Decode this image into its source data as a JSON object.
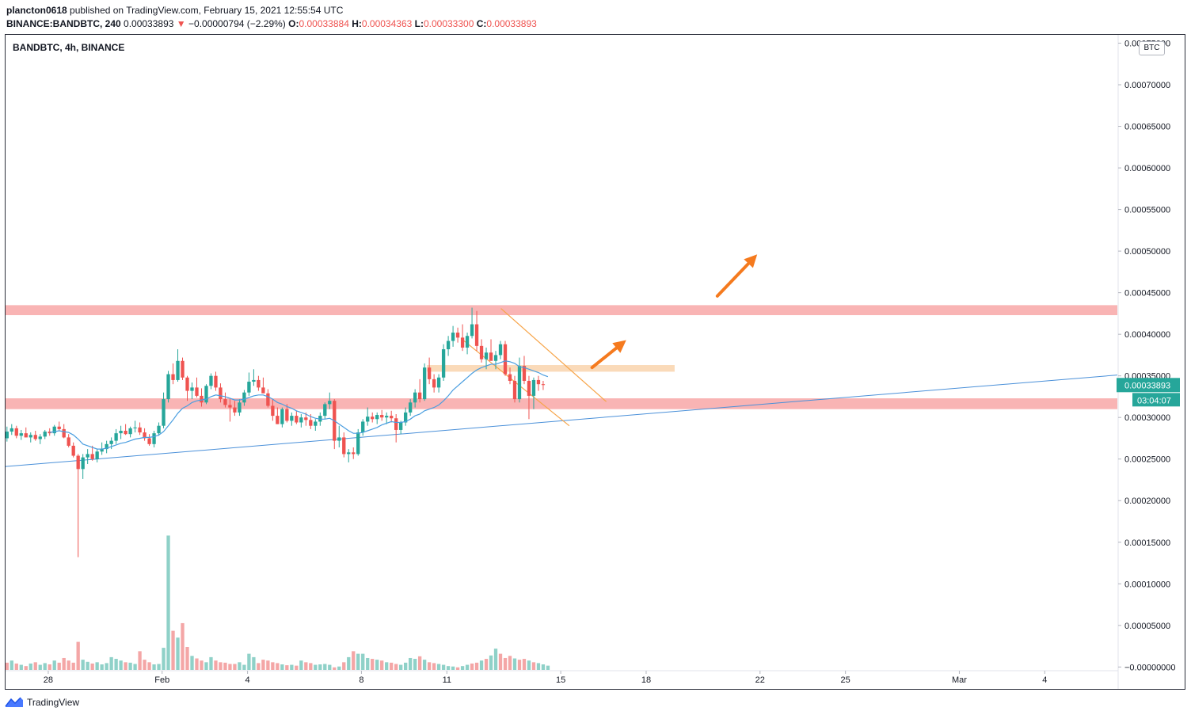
{
  "header": {
    "publisher": "plancton0618",
    "published_text": "published on TradingView.com, February 15, 2021 12:55:54 UTC",
    "symbol": "BINANCE:BANDBTC, 240",
    "last": "0.00033893",
    "change": "−0.00000794 (−2.29%)",
    "o_label": "O:",
    "o_value": "0.00033884",
    "h_label": "H:",
    "h_value": "0.00034363",
    "l_label": "L:",
    "l_value": "0.00033300",
    "c_label": "C:",
    "c_value": "0.00033893"
  },
  "chart_data": {
    "type": "candlestick",
    "title": "BANDBTC, 4h, BINANCE",
    "currency": "BTC",
    "y_ticks": [
      "0.00075000",
      "0.00070000",
      "0.00065000",
      "0.00060000",
      "0.00055000",
      "0.00050000",
      "0.00045000",
      "0.00040000",
      "0.00035000",
      "0.00030000",
      "0.00025000",
      "0.00020000",
      "0.00015000",
      "0.00010000",
      "0.00005000",
      "−0.00000000"
    ],
    "y_tick_values": [
      0.00075,
      0.0007,
      0.00065,
      0.0006,
      0.00055,
      0.0005,
      0.00045,
      0.0004,
      0.00035,
      0.0003,
      0.00025,
      0.0002,
      0.00015,
      0.0001,
      5e-05,
      0
    ],
    "ylim": [
      -3.5e-06,
      0.00076
    ],
    "x_ticks": [
      "28",
      "Feb",
      "4",
      "8",
      "11",
      "15",
      "18",
      "22",
      "25",
      "Mar",
      "4"
    ],
    "x_tick_days": [
      28,
      32,
      35,
      39,
      42,
      46,
      49,
      53,
      56,
      60,
      63
    ],
    "xlim_days": [
      26.5,
      65.55
    ],
    "current_price_label": "0.00033893",
    "countdown_label": "03:04:07",
    "candles_start_day": 26.55,
    "candles_interval_days": 0.16667,
    "candles": [
      [
        0.000275,
        0.000289,
        0.000271,
        0.000283
      ],
      [
        0.000283,
        0.000292,
        0.000279,
        0.000287
      ],
      [
        0.000287,
        0.00029,
        0.000275,
        0.000278
      ],
      [
        0.000278,
        0.000285,
        0.000273,
        0.000281
      ],
      [
        0.000281,
        0.000288,
        0.000276,
        0.000276
      ],
      [
        0.000276,
        0.000282,
        0.00027,
        0.000279
      ],
      [
        0.000279,
        0.000284,
        0.000272,
        0.000274
      ],
      [
        0.000274,
        0.00028,
        0.000268,
        0.000277
      ],
      [
        0.000277,
        0.000285,
        0.000274,
        0.000283
      ],
      [
        0.000283,
        0.000287,
        0.000278,
        0.000281
      ],
      [
        0.000281,
        0.000291,
        0.000278,
        0.000289
      ],
      [
        0.000289,
        0.000295,
        0.000284,
        0.000286
      ],
      [
        0.000286,
        0.000292,
        0.000275,
        0.000276
      ],
      [
        0.000276,
        0.00028,
        0.000264,
        0.000266
      ],
      [
        0.000266,
        0.00027,
        0.000252,
        0.000254
      ],
      [
        0.000254,
        0.000256,
        0.000132,
        0.000238
      ],
      [
        0.000238,
        0.000256,
        0.000226,
        0.000252
      ],
      [
        0.000252,
        0.000262,
        0.000244,
        0.000256
      ],
      [
        0.000256,
        0.000266,
        0.000248,
        0.00025
      ],
      [
        0.00025,
        0.000262,
        0.000246,
        0.000259
      ],
      [
        0.000259,
        0.00027,
        0.000255,
        0.000262
      ],
      [
        0.000262,
        0.000272,
        0.000257,
        0.000268
      ],
      [
        0.000268,
        0.000276,
        0.000262,
        0.000272
      ],
      [
        0.000272,
        0.000286,
        0.000268,
        0.000281
      ],
      [
        0.000281,
        0.00029,
        0.000274,
        0.000284
      ],
      [
        0.000284,
        0.000292,
        0.000279,
        0.00028
      ],
      [
        0.00028,
        0.000289,
        0.000276,
        0.000287
      ],
      [
        0.000287,
        0.000296,
        0.000282,
        0.000288
      ],
      [
        0.000288,
        0.000294,
        0.000279,
        0.000282
      ],
      [
        0.000282,
        0.000287,
        0.000272,
        0.000275
      ],
      [
        0.000275,
        0.00028,
        0.000266,
        0.000268
      ],
      [
        0.000268,
        0.000284,
        0.000264,
        0.000281
      ],
      [
        0.000281,
        0.000294,
        0.000278,
        0.00029
      ],
      [
        0.00029,
        0.00033,
        0.000287,
        0.000322
      ],
      [
        0.000322,
        0.000356,
        0.000318,
        0.000352
      ],
      [
        0.000352,
        0.000365,
        0.00034,
        0.000345
      ],
      [
        0.000345,
        0.000382,
        0.000343,
        0.000368
      ],
      [
        0.000368,
        0.000372,
        0.000345,
        0.000348
      ],
      [
        0.000348,
        0.00035,
        0.00032,
        0.000332
      ],
      [
        0.000332,
        0.000342,
        0.000322,
        0.000336
      ],
      [
        0.000336,
        0.000348,
        0.000324,
        0.000326
      ],
      [
        0.000326,
        0.000335,
        0.000313,
        0.000318
      ],
      [
        0.000318,
        0.00034,
        0.000316,
        0.000338
      ],
      [
        0.000338,
        0.000353,
        0.000334,
        0.00035
      ],
      [
        0.00035,
        0.000355,
        0.000332,
        0.000336
      ],
      [
        0.000336,
        0.000341,
        0.000318,
        0.000322
      ],
      [
        0.000322,
        0.00033,
        0.000312,
        0.000315
      ],
      [
        0.000315,
        0.000322,
        0.000295,
        0.000312
      ],
      [
        0.000312,
        0.00032,
        0.000302,
        0.000306
      ],
      [
        0.000306,
        0.000322,
        0.000302,
        0.000318
      ],
      [
        0.000318,
        0.000333,
        0.000314,
        0.00033
      ],
      [
        0.00033,
        0.000354,
        0.000326,
        0.000343
      ],
      [
        0.000343,
        0.000358,
        0.000338,
        0.000345
      ],
      [
        0.000345,
        0.00035,
        0.000332,
        0.000336
      ],
      [
        0.000336,
        0.000348,
        0.000331,
        0.000329
      ],
      [
        0.000329,
        0.000334,
        0.000312,
        0.000314
      ],
      [
        0.000314,
        0.000322,
        0.000296,
        0.000302
      ],
      [
        0.000302,
        0.000312,
        0.000292,
        0.000292
      ],
      [
        0.000292,
        0.000312,
        0.000288,
        0.00031
      ],
      [
        0.00031,
        0.000316,
        0.000294,
        0.000296
      ],
      [
        0.000296,
        0.000306,
        0.00029,
        0.000302
      ],
      [
        0.000302,
        0.000308,
        0.000292,
        0.000294
      ],
      [
        0.000294,
        0.000304,
        0.000288,
        0.0003
      ],
      [
        0.0003,
        0.000306,
        0.00029,
        0.000297
      ],
      [
        0.000297,
        0.000304,
        0.000286,
        0.00029
      ],
      [
        0.00029,
        0.000298,
        0.000284,
        0.000295
      ],
      [
        0.000295,
        0.000306,
        0.00029,
        0.000302
      ],
      [
        0.000302,
        0.000318,
        0.000298,
        0.000316
      ],
      [
        0.000316,
        0.00033,
        0.00031,
        0.00032
      ],
      [
        0.00032,
        0.000322,
        0.000262,
        0.000272
      ],
      [
        0.000272,
        0.00029,
        0.000264,
        0.000276
      ],
      [
        0.000276,
        0.000282,
        0.000252,
        0.000256
      ],
      [
        0.000256,
        0.000262,
        0.000246,
        0.000258
      ],
      [
        0.000258,
        0.000264,
        0.00025,
        0.000256
      ],
      [
        0.000256,
        0.000286,
        0.000254,
        0.000282
      ],
      [
        0.000282,
        0.000298,
        0.000278,
        0.000295
      ],
      [
        0.000295,
        0.000312,
        0.00029,
        0.000301
      ],
      [
        0.000301,
        0.000306,
        0.000294,
        0.000298
      ],
      [
        0.000298,
        0.000306,
        0.000292,
        0.000303
      ],
      [
        0.000303,
        0.000309,
        0.000296,
        0.0003
      ],
      [
        0.0003,
        0.000306,
        0.000292,
        0.000302
      ],
      [
        0.000302,
        0.000308,
        0.000294,
        0.000299
      ],
      [
        0.000299,
        0.000304,
        0.00027,
        0.000285
      ],
      [
        0.000285,
        0.000296,
        0.00028,
        0.000294
      ],
      [
        0.000294,
        0.000312,
        0.00029,
        0.000306
      ],
      [
        0.000306,
        0.000322,
        0.000302,
        0.000318
      ],
      [
        0.000318,
        0.000334,
        0.000312,
        0.00033
      ],
      [
        0.00033,
        0.000346,
        0.000318,
        0.000322
      ],
      [
        0.000322,
        0.000365,
        0.00032,
        0.00036
      ],
      [
        0.00036,
        0.000372,
        0.00034,
        0.000346
      ],
      [
        0.000346,
        0.000352,
        0.00033,
        0.000336
      ],
      [
        0.000336,
        0.000352,
        0.00033,
        0.000348
      ],
      [
        0.000348,
        0.000388,
        0.000344,
        0.000382
      ],
      [
        0.000382,
        0.000398,
        0.000374,
        0.000392
      ],
      [
        0.000392,
        0.00041,
        0.000385,
        0.000402
      ],
      [
        0.000402,
        0.000408,
        0.00039,
        0.000396
      ],
      [
        0.000396,
        0.000412,
        0.00038,
        0.000384
      ],
      [
        0.000384,
        0.000402,
        0.000376,
        0.000398
      ],
      [
        0.000398,
        0.000432,
        0.000395,
        0.000412
      ],
      [
        0.000412,
        0.000428,
        0.00038,
        0.000386
      ],
      [
        0.000386,
        0.000394,
        0.000366,
        0.00037
      ],
      [
        0.00037,
        0.000384,
        0.000358,
        0.000378
      ],
      [
        0.000378,
        0.000394,
        0.00037,
        0.000368
      ],
      [
        0.000368,
        0.00038,
        0.000358,
        0.000375
      ],
      [
        0.000375,
        0.000392,
        0.00037,
        0.000388
      ],
      [
        0.000388,
        0.000392,
        0.00035,
        0.000352
      ],
      [
        0.000352,
        0.00036,
        0.00034,
        0.000344
      ],
      [
        0.000344,
        0.00035,
        0.000318,
        0.000322
      ],
      [
        0.000322,
        0.000372,
        0.000318,
        0.000362
      ],
      [
        0.000362,
        0.000374,
        0.00034,
        0.000344
      ],
      [
        0.000344,
        0.00035,
        0.000298,
        0.000326
      ],
      [
        0.000326,
        0.000348,
        0.00031,
        0.000345
      ],
      [
        0.000345,
        0.00035,
        0.000332,
        0.00034
      ],
      [
        0.00034,
        0.000344,
        0.000333,
        0.000339
      ]
    ],
    "volume_sign": [
      -1,
      1,
      -1,
      1,
      -1,
      1,
      -1,
      1,
      1,
      -1,
      1,
      -1,
      -1,
      -1,
      -1,
      -1,
      1,
      1,
      -1,
      1,
      1,
      1,
      1,
      1,
      1,
      -1,
      1,
      1,
      -1,
      -1,
      -1,
      1,
      1,
      1,
      1,
      -1,
      1,
      -1,
      -1,
      1,
      -1,
      -1,
      1,
      1,
      -1,
      -1,
      -1,
      -1,
      -1,
      1,
      1,
      1,
      1,
      -1,
      -1,
      -1,
      -1,
      -1,
      1,
      -1,
      1,
      -1,
      1,
      -1,
      -1,
      1,
      1,
      1,
      1,
      -1,
      1,
      -1,
      1,
      -1,
      1,
      1,
      1,
      -1,
      1,
      -1,
      1,
      -1,
      -1,
      1,
      1,
      1,
      1,
      -1,
      1,
      -1,
      -1,
      1,
      1,
      1,
      1,
      -1,
      1,
      1,
      -1,
      -1,
      1,
      -1,
      1,
      1,
      -1,
      -1,
      -1,
      1,
      -1,
      -1,
      1,
      -1,
      1
    ],
    "volume": [
      8.5e-06,
      1.1e-05,
      7.5e-06,
      6e-06,
      4.5e-06,
      7.5e-06,
      9e-06,
      6e-06,
      8e-06,
      6.5e-06,
      1.1e-05,
      8.5e-06,
      1.4e-05,
      1.1e-05,
      8.5e-06,
      3.3e-05,
      1.2e-05,
      9.5e-06,
      7.5e-06,
      9e-06,
      6.5e-06,
      8e-06,
      1.5e-05,
      1.3e-05,
      1.1e-05,
      9e-06,
      8.5e-06,
      7e-06,
      2.2e-05,
      1.2e-05,
      9e-06,
      6.5e-06,
      7e-06,
      2.6e-05,
      0.000158,
      4.6e-05,
      3.8e-05,
      5.5e-05,
      2.7e-05,
      1.65e-05,
      1.35e-05,
      1.1e-05,
      9e-06,
      1.5e-05,
      1.1e-05,
      9e-06,
      8.5e-06,
      7e-06,
      7e-06,
      9e-06,
      6e-06,
      1.9e-05,
      1.5e-05,
      8e-06,
      1.2e-05,
      1.1e-05,
      9e-06,
      8e-06,
      6.5e-06,
      5.5e-06,
      6e-06,
      5e-06,
      1.1e-05,
      9e-06,
      8e-06,
      6e-06,
      6.5e-06,
      7e-06,
      6e-06,
      3e-06,
      4e-06,
      9e-06,
      1.5e-05,
      2.2e-05,
      1.9e-05,
      1.9e-05,
      1.4e-05,
      1.3e-05,
      1.2e-05,
      1.1e-05,
      9e-06,
      8.5e-06,
      7e-06,
      6e-06,
      8.5e-06,
      1.4e-05,
      1.3e-05,
      1.6e-05,
      1.2e-05,
      9e-06,
      8e-06,
      7e-06,
      6e-06,
      4.5e-06,
      4e-06,
      3e-06,
      4.5e-06,
      6e-06,
      7.5e-06,
      8.5e-06,
      1.1e-05,
      1.3e-05,
      1.7e-05,
      2.5e-05,
      1.9e-05,
      1.4e-05,
      1.65e-05,
      1.35e-05,
      1.2e-05,
      1.3e-05,
      1.1e-05,
      9e-06,
      8e-06,
      6.5e-06,
      5e-06
    ],
    "ma_values": [
      null,
      null,
      null,
      null,
      null,
      null,
      null,
      null,
      null,
      0.000282,
      0.000283,
      0.000284,
      0.000283,
      0.000282,
      0.000279,
      0.000274,
      0.000268,
      0.000266,
      0.000264,
      0.000262,
      0.000262,
      0.000263,
      0.000265,
      0.000267,
      0.000269,
      0.00027,
      0.000272,
      0.000274,
      0.000275,
      0.000276,
      0.000276,
      0.000277,
      0.000279,
      0.000283,
      0.00029,
      0.000297,
      0.000305,
      0.000311,
      0.000314,
      0.000318,
      0.00032,
      0.000321,
      0.000322,
      0.000325,
      0.000327,
      0.000326,
      0.000325,
      0.000323,
      0.000321,
      0.000321,
      0.000322,
      0.000324,
      0.000326,
      0.000327,
      0.000327,
      0.000325,
      0.000322,
      0.000318,
      0.000316,
      0.000313,
      0.000311,
      0.000308,
      0.000306,
      0.000304,
      0.000301,
      0.000299,
      0.000298,
      0.000298,
      0.000299,
      0.000296,
      0.000292,
      0.000288,
      0.000284,
      0.000281,
      0.000281,
      0.000282,
      0.000284,
      0.000286,
      0.000288,
      0.000291,
      0.000293,
      0.000295,
      0.000294,
      0.000294,
      0.000295,
      0.000298,
      0.000302,
      0.000304,
      0.000308,
      0.00031,
      0.000312,
      0.000315,
      0.00032,
      0.000326,
      0.000333,
      0.000338,
      0.000343,
      0.000348,
      0.000353,
      0.000357,
      0.00036,
      0.000362,
      0.000364,
      0.000364,
      0.000366,
      0.000368,
      0.000367,
      0.000365,
      0.000361,
      0.00036,
      0.000358,
      0.000356,
      0.000354,
      0.000351,
      0.000349
    ],
    "support_resistance_zones": [
      {
        "from": 0.000423,
        "to": 0.000435,
        "color": "#f8a7a7"
      },
      {
        "from": 0.00031,
        "to": 0.000323,
        "color": "#f8a7a7"
      }
    ],
    "highlight_zone": {
      "from_day": 41.3,
      "to_day": 50.0,
      "from": 0.000355,
      "to": 0.000363,
      "color": "#fad6b1"
    },
    "trendline": {
      "p1": [
        26.5,
        0.000241
      ],
      "p2": [
        65.55,
        0.000351
      ],
      "color": "#4a90d9"
    },
    "channel_lines": [
      {
        "p1": [
          43.9,
          0.000431
        ],
        "p2": [
          47.6,
          0.000319
        ]
      },
      {
        "p1": [
          42.5,
          0.000395
        ],
        "p2": [
          46.3,
          0.00029
        ]
      }
    ],
    "arrows": [
      {
        "from": [
          47.1,
          0.00036
        ],
        "to": [
          48.3,
          0.000393
        ]
      },
      {
        "from": [
          51.5,
          0.000446
        ],
        "to": [
          52.9,
          0.000496
        ]
      }
    ],
    "colors": {
      "up": "#26a69a",
      "down": "#ef5350",
      "vol_up": "#8fd1c8",
      "vol_down": "#f4a6a6",
      "ma": "#4a9ee0",
      "channel": "#f7a54a",
      "arrow": "#f57a1e",
      "axis_text": "#131722",
      "badge": "#26a69a"
    }
  },
  "footer": {
    "brand": "TradingView"
  }
}
